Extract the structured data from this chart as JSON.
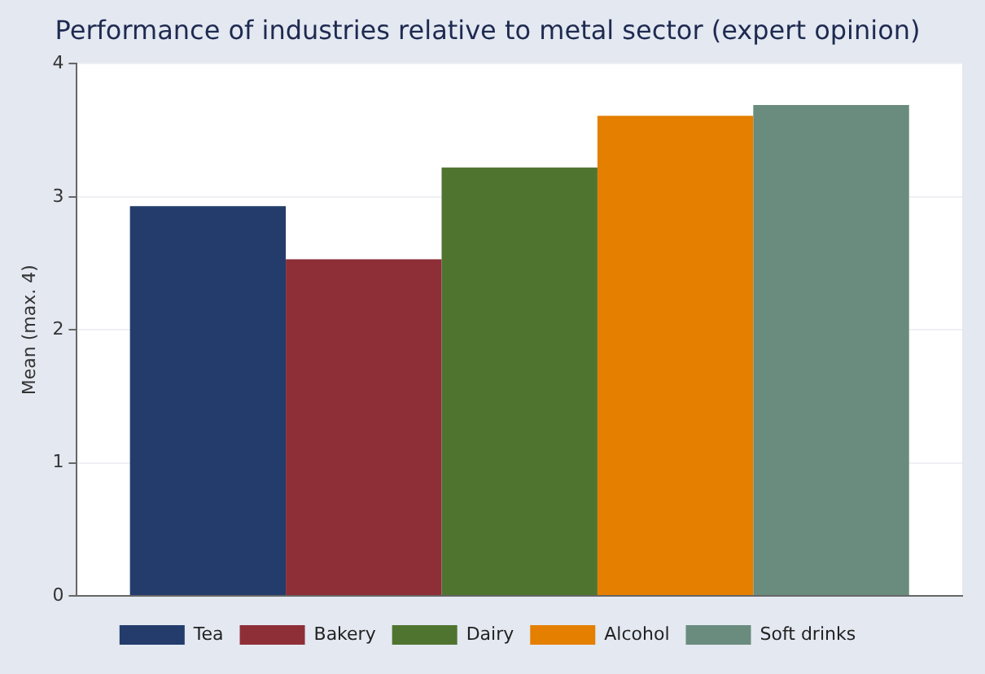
{
  "chart_data": {
    "type": "bar",
    "title": "Performance of industries relative to metal sector (expert opinion)",
    "ylabel": "Mean (max. 4)",
    "categories": [
      null
    ],
    "series": [
      {
        "name": "Tea",
        "color": "#233c6b",
        "values": [
          2.93
        ]
      },
      {
        "name": "Bakery",
        "color": "#8e2f38",
        "values": [
          2.53
        ]
      },
      {
        "name": "Dairy",
        "color": "#4f7430",
        "values": [
          3.22
        ]
      },
      {
        "name": "Alcohol",
        "color": "#e47f00",
        "values": [
          3.61
        ]
      },
      {
        "name": "Soft drinks",
        "color": "#6a8c7e",
        "values": [
          3.69
        ]
      }
    ],
    "ylim": [
      0,
      4
    ],
    "yticks": [
      0,
      1,
      2,
      3,
      4
    ],
    "grid": "y",
    "legend": "bottom"
  }
}
